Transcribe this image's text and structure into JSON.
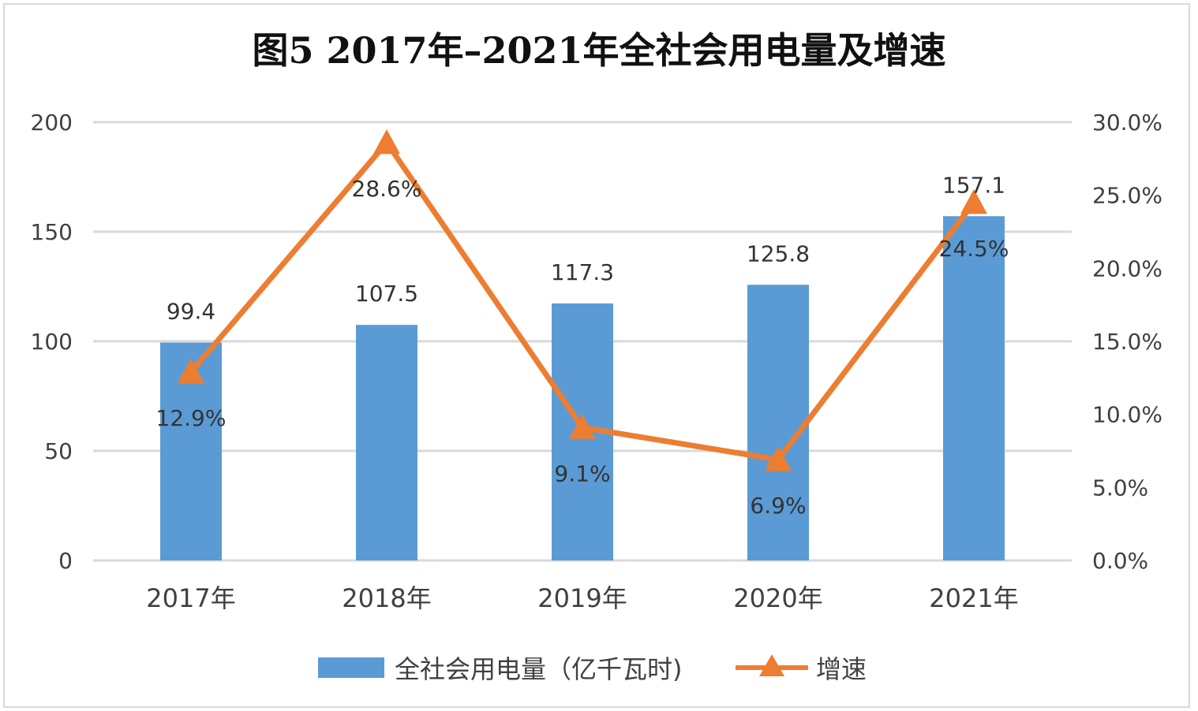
{
  "chart_data": {
    "type": "bar+line",
    "title": "图5  2017年–2021年全社会用电量及增速",
    "categories": [
      "2017年",
      "2018年",
      "2019年",
      "2020年",
      "2021年"
    ],
    "series": [
      {
        "name": "全社会用电量（亿千瓦时)",
        "type": "bar",
        "axis": "left",
        "color": "#5b9bd5",
        "values": [
          99.4,
          107.5,
          117.3,
          125.8,
          157.1
        ],
        "labels": [
          "99.4",
          "107.5",
          "117.3",
          "125.8",
          "157.1"
        ]
      },
      {
        "name": "增速",
        "type": "line",
        "marker": "triangle",
        "axis": "right",
        "color": "#ed7d31",
        "values": [
          12.9,
          28.6,
          9.1,
          6.9,
          24.5
        ],
        "labels": [
          "12.9%",
          "28.6%",
          "9.1%",
          "6.9%",
          "24.5%"
        ]
      }
    ],
    "left_axis": {
      "ylim": [
        0,
        200
      ],
      "ticks": [
        "0",
        "50",
        "100",
        "150",
        "200"
      ]
    },
    "right_axis": {
      "ylim": [
        0,
        30
      ],
      "ticks": [
        "0.0%",
        "5.0%",
        "10.0%",
        "15.0%",
        "20.0%",
        "25.0%",
        "30.0%"
      ]
    },
    "grid": true,
    "legend_position": "bottom"
  }
}
